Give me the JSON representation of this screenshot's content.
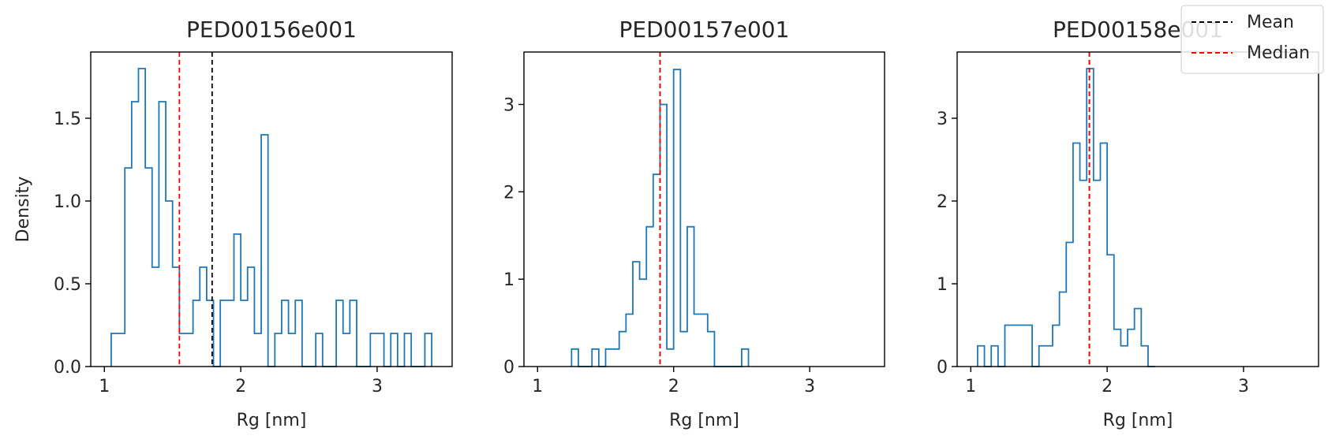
{
  "figure": {
    "legend": {
      "placement": "upper-right",
      "entries": [
        {
          "label": "Mean",
          "color": "#000000",
          "style": "dashed"
        },
        {
          "label": "Median",
          "color": "#ff0000",
          "style": "dashed"
        }
      ]
    }
  },
  "chart_data": [
    {
      "type": "histogram",
      "title": "PED00156e001",
      "xlabel": "Rg [nm]",
      "ylabel": "Density",
      "xlim": [
        0.9,
        3.55
      ],
      "ylim": [
        0,
        1.9
      ],
      "xticks": [
        1,
        2,
        3
      ],
      "yticks": [
        0.0,
        0.5,
        1.0,
        1.5
      ],
      "ytick_labels": [
        "0.0",
        "0.5",
        "1.0",
        "1.5"
      ],
      "bin_edges": [
        1.05,
        1.15,
        1.2,
        1.25,
        1.3,
        1.35,
        1.4,
        1.45,
        1.5,
        1.55,
        1.65,
        1.7,
        1.75,
        1.8,
        1.85,
        1.95,
        2.0,
        2.05,
        2.1,
        2.15,
        2.2,
        2.25,
        2.3,
        2.35,
        2.4,
        2.45,
        2.55,
        2.6,
        2.7,
        2.75,
        2.8,
        2.85,
        2.95,
        3.05,
        3.1,
        3.15,
        3.2,
        3.25,
        3.35,
        3.4
      ],
      "density": [
        0.2,
        1.2,
        1.6,
        1.8,
        1.2,
        0.6,
        1.6,
        1.0,
        0.6,
        0.2,
        0.4,
        0.6,
        0.4,
        0.0,
        0.4,
        0.8,
        0.4,
        0.6,
        0.2,
        1.4,
        0.0,
        0.2,
        0.4,
        0.2,
        0.4,
        0.0,
        0.2,
        0.0,
        0.4,
        0.2,
        0.4,
        0.0,
        0.2,
        0.0,
        0.2,
        0.0,
        0.2,
        0.0,
        0.2,
        0.0
      ],
      "mean": 1.79,
      "median": 1.55,
      "series_color": "#1f77b4"
    },
    {
      "type": "histogram",
      "title": "PED00157e001",
      "xlabel": "Rg [nm]",
      "ylabel": "",
      "xlim": [
        0.9,
        3.55
      ],
      "ylim": [
        0,
        3.6
      ],
      "xticks": [
        1,
        2,
        3
      ],
      "yticks": [
        0,
        1,
        2,
        3
      ],
      "ytick_labels": [
        "0",
        "1",
        "2",
        "3"
      ],
      "bin_edges": [
        1.25,
        1.3,
        1.4,
        1.45,
        1.5,
        1.6,
        1.65,
        1.7,
        1.75,
        1.8,
        1.85,
        1.9,
        1.95,
        2.0,
        2.05,
        2.1,
        2.15,
        2.25,
        2.3,
        2.5,
        2.55
      ],
      "density": [
        0.2,
        0.0,
        0.2,
        0.0,
        0.2,
        0.4,
        0.6,
        1.2,
        1.0,
        1.6,
        2.2,
        3.0,
        0.2,
        3.4,
        0.4,
        1.6,
        0.6,
        0.4,
        0.0,
        0.2,
        0.0
      ],
      "mean": 1.9,
      "median": 1.9,
      "series_color": "#1f77b4"
    },
    {
      "type": "histogram",
      "title": "PED00158e001",
      "xlabel": "Rg [nm]",
      "ylabel": "",
      "xlim": [
        0.9,
        3.55
      ],
      "ylim": [
        0,
        3.8
      ],
      "xticks": [
        1,
        2,
        3
      ],
      "yticks": [
        0,
        1,
        2,
        3
      ],
      "ytick_labels": [
        "0",
        "1",
        "2",
        "3"
      ],
      "bin_edges": [
        1.05,
        1.1,
        1.15,
        1.2,
        1.25,
        1.45,
        1.5,
        1.6,
        1.65,
        1.7,
        1.75,
        1.8,
        1.85,
        1.9,
        1.95,
        2.0,
        2.05,
        2.1,
        2.15,
        2.2,
        2.25,
        2.3,
        2.35
      ],
      "density": [
        0.25,
        0.0,
        0.25,
        0.0,
        0.5,
        0.0,
        0.25,
        0.5,
        0.9,
        1.5,
        2.7,
        2.25,
        3.6,
        2.25,
        2.7,
        1.35,
        0.45,
        0.25,
        0.45,
        0.7,
        0.25,
        0.0,
        0.0
      ],
      "mean": 1.87,
      "median": 1.87,
      "series_color": "#1f77b4"
    }
  ]
}
